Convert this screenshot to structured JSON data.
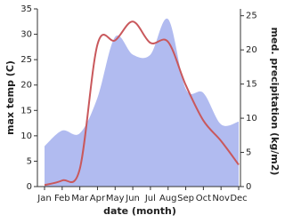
{
  "chart_data": {
    "type": "line-area",
    "x_label": "date (month)",
    "y_label": "max temp (C)",
    "y2_label": "med. precipitation (kg/m2)",
    "categories": [
      "Jan",
      "Feb",
      "Mar",
      "Apr",
      "May",
      "Jun",
      "Jul",
      "Aug",
      "Sep",
      "Oct",
      "Nov",
      "Dec"
    ],
    "ylim": [
      0,
      35
    ],
    "yticks": [
      0,
      5,
      10,
      15,
      20,
      25,
      30,
      35
    ],
    "y2lim": [
      0,
      26
    ],
    "y2ticks": [
      0,
      5,
      10,
      15,
      20,
      25
    ],
    "series": [
      {
        "name": "max temp",
        "color": "#c9585c",
        "values": [
          0.3,
          1.2,
          3.5,
          28,
          28.8,
          32.5,
          28.3,
          28.5,
          20,
          13,
          9,
          4.3
        ]
      },
      {
        "name": "med. precipitation",
        "color": "#b1bbf0",
        "axis": "y2",
        "values": [
          5.9,
          8.2,
          7.8,
          13,
          21.9,
          19.3,
          19.3,
          24.5,
          14.3,
          13.7,
          9.1,
          9.5
        ]
      }
    ]
  }
}
